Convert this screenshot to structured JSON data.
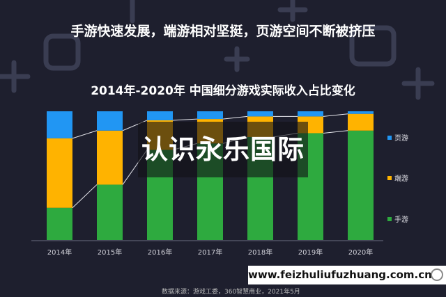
{
  "headline": "手游快速发展，端游相对坚挺，页游空间不断被挤压",
  "overlay_text": "认识永乐国际",
  "site_banner": "www.feizhuliufuzhuang.com.cn",
  "source": "数据来源：游戏工委，360智慧商业，2021年5月",
  "colors": {
    "background": "#1e1f2e",
    "web": "#2196f3",
    "client": "#ffb300",
    "mobile": "#2eaa3f"
  },
  "chart_data": {
    "type": "bar",
    "stacked": true,
    "normalized": true,
    "title": "2014年-2020年 中国细分游戏实际收入占比变化",
    "categories": [
      "2014年",
      "2015年",
      "2016年",
      "2017年",
      "2018年",
      "2019年",
      "2020年"
    ],
    "series": [
      {
        "name": "手游",
        "values": [
          25,
          43,
          70,
          75,
          80,
          83,
          85
        ]
      },
      {
        "name": "端游",
        "values": [
          54,
          42,
          23,
          19,
          16,
          13,
          13
        ]
      },
      {
        "name": "页游",
        "values": [
          21,
          15,
          7,
          6,
          4,
          4,
          2
        ]
      }
    ],
    "ylim": [
      0,
      100
    ],
    "legend_position": "right",
    "grid": false,
    "connector_lines": true
  }
}
